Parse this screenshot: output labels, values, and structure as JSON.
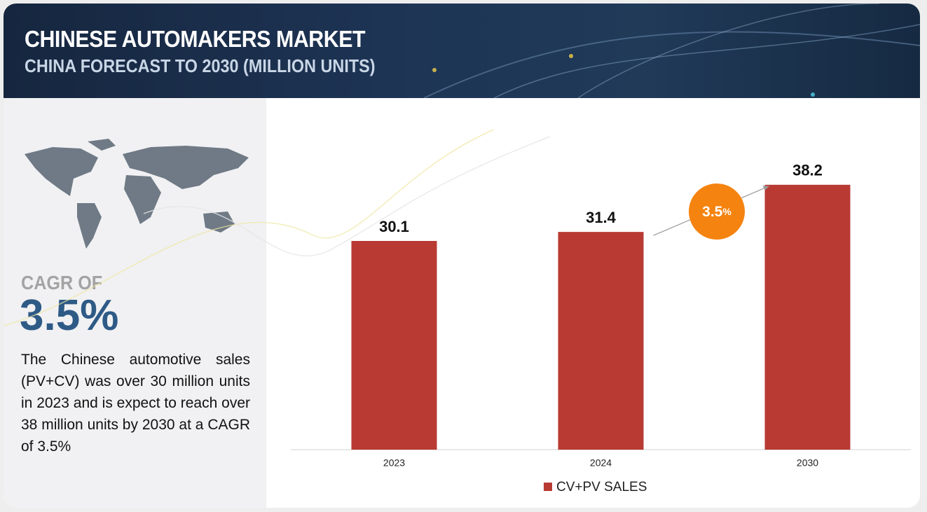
{
  "chart_data": {
    "type": "bar",
    "title": "CHINESE AUTOMAKERS MARKET",
    "subtitle": "CHINA FORECAST TO 2030 (MILLION UNITS)",
    "categories": [
      "2023",
      "2024",
      "2030"
    ],
    "series": [
      {
        "name": "CV+PV SALES",
        "color": "#b83a33",
        "values": [
          30.1,
          31.4,
          38.2
        ]
      }
    ],
    "ylim": [
      0,
      40
    ],
    "annotation": {
      "number": "3.5",
      "unit": "%"
    },
    "legend": "bottom"
  },
  "sidebar": {
    "cagr_label": "CAGR OF",
    "cagr_value": "3.5%",
    "description": "The Chinese automotive sales (PV+CV) was over 30 million units in 2023 and is expect to reach over 38 million units by 2030 at a CAGR of 3.5%"
  }
}
